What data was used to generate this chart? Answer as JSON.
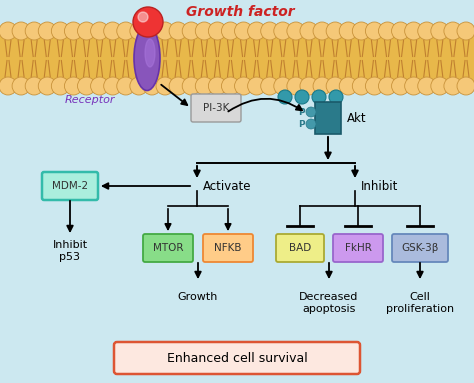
{
  "bg_color": "#cce8f0",
  "title": "Growth factor",
  "title_color": "#cc2222",
  "receptor_label": "Receptor",
  "pi3k_label": "PI-3K",
  "akt_label": "Akt",
  "akt_color": "#2a7a8a",
  "activate_label": "Activate",
  "inhibit_label": "Inhibit",
  "mdm2_label": "MDM-2",
  "inhibit_p53_label": "Inhibit\np53",
  "mtor_label": "MTOR",
  "nfkb_label": "NFKB",
  "bad_label": "BAD",
  "fkhr_label": "FkHR",
  "gsk_label": "GSK-3β",
  "growth_label": "Growth",
  "decreased_apoptosis_label": "Decreased\napoptosis",
  "cell_prolif_label": "Cell\nproliferation",
  "enhanced_label": "Enhanced cell survival",
  "enhanced_color": "#dd5533",
  "enhanced_bg": "#fde8e0",
  "mem_head_color": "#f5c878",
  "mem_head_ec": "#c8923a",
  "mem_tail_bg": "#e8b84a",
  "mem_tail_line": "#c08030"
}
